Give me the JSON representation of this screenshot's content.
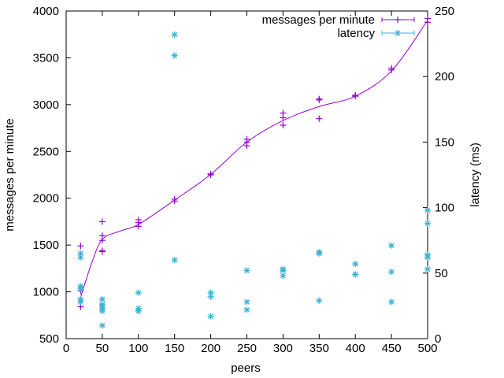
{
  "chart_data": {
    "type": "scatter",
    "xlabel": "peers",
    "ylabel": "messages per minute",
    "y2label": "latency (ms)",
    "xlim": [
      0,
      500
    ],
    "ylim": [
      500,
      4000
    ],
    "y2lim": [
      0,
      250
    ],
    "x_ticks": [
      "0",
      "50",
      "100",
      "150",
      "200",
      "250",
      "300",
      "350",
      "400",
      "450",
      "500"
    ],
    "y_ticks": [
      "500",
      "1000",
      "1500",
      "2000",
      "2500",
      "3000",
      "3500",
      "4000"
    ],
    "y2_ticks": [
      "0",
      "50",
      "100",
      "150",
      "200",
      "250"
    ],
    "legend_position": "top-right",
    "grid": false,
    "series": [
      {
        "name": "messages per minute",
        "axis": "left",
        "color": "#9400d3",
        "marker": "plus",
        "points": [
          [
            20,
            1490
          ],
          [
            20,
            1010
          ],
          [
            20,
            840
          ],
          [
            50,
            1750
          ],
          [
            50,
            1600
          ],
          [
            50,
            1550
          ],
          [
            50,
            1440
          ],
          [
            50,
            1430
          ],
          [
            100,
            1770
          ],
          [
            100,
            1740
          ],
          [
            100,
            1700
          ],
          [
            150,
            1990
          ],
          [
            150,
            1970
          ],
          [
            200,
            2260
          ],
          [
            200,
            2250
          ],
          [
            250,
            2630
          ],
          [
            250,
            2600
          ],
          [
            250,
            2560
          ],
          [
            300,
            2910
          ],
          [
            300,
            2860
          ],
          [
            300,
            2780
          ],
          [
            350,
            3060
          ],
          [
            350,
            3050
          ],
          [
            350,
            2850
          ],
          [
            400,
            3100
          ],
          [
            400,
            3090
          ],
          [
            450,
            3390
          ],
          [
            450,
            3370
          ],
          [
            500,
            3920
          ],
          [
            500,
            3880
          ]
        ],
        "curve": [
          [
            20,
            940
          ],
          [
            35,
            1300
          ],
          [
            50,
            1560
          ],
          [
            75,
            1650
          ],
          [
            100,
            1720
          ],
          [
            150,
            1980
          ],
          [
            200,
            2255
          ],
          [
            250,
            2600
          ],
          [
            300,
            2830
          ],
          [
            350,
            2980
          ],
          [
            400,
            3090
          ],
          [
            450,
            3360
          ],
          [
            500,
            3900
          ]
        ]
      },
      {
        "name": "latency",
        "axis": "right",
        "color": "#3fb2d4",
        "marker": "asterisk",
        "points": [
          [
            20,
            65
          ],
          [
            20,
            62
          ],
          [
            20,
            40
          ],
          [
            20,
            38
          ],
          [
            20,
            30
          ],
          [
            20,
            28
          ],
          [
            50,
            30
          ],
          [
            50,
            26
          ],
          [
            50,
            25
          ],
          [
            50,
            23
          ],
          [
            50,
            21
          ],
          [
            50,
            10
          ],
          [
            100,
            35
          ],
          [
            100,
            23
          ],
          [
            100,
            21
          ],
          [
            150,
            232
          ],
          [
            150,
            216
          ],
          [
            150,
            60
          ],
          [
            200,
            35
          ],
          [
            200,
            32
          ],
          [
            200,
            17
          ],
          [
            250,
            52
          ],
          [
            250,
            28
          ],
          [
            250,
            22
          ],
          [
            300,
            53
          ],
          [
            300,
            52
          ],
          [
            300,
            48
          ],
          [
            350,
            66
          ],
          [
            350,
            65
          ],
          [
            350,
            29
          ],
          [
            400,
            57
          ],
          [
            400,
            49
          ],
          [
            400,
            49
          ],
          [
            450,
            71
          ],
          [
            450,
            51
          ],
          [
            450,
            28
          ],
          [
            500,
            98
          ],
          [
            500,
            88
          ],
          [
            500,
            64
          ],
          [
            500,
            62
          ],
          [
            500,
            53
          ]
        ]
      }
    ]
  }
}
